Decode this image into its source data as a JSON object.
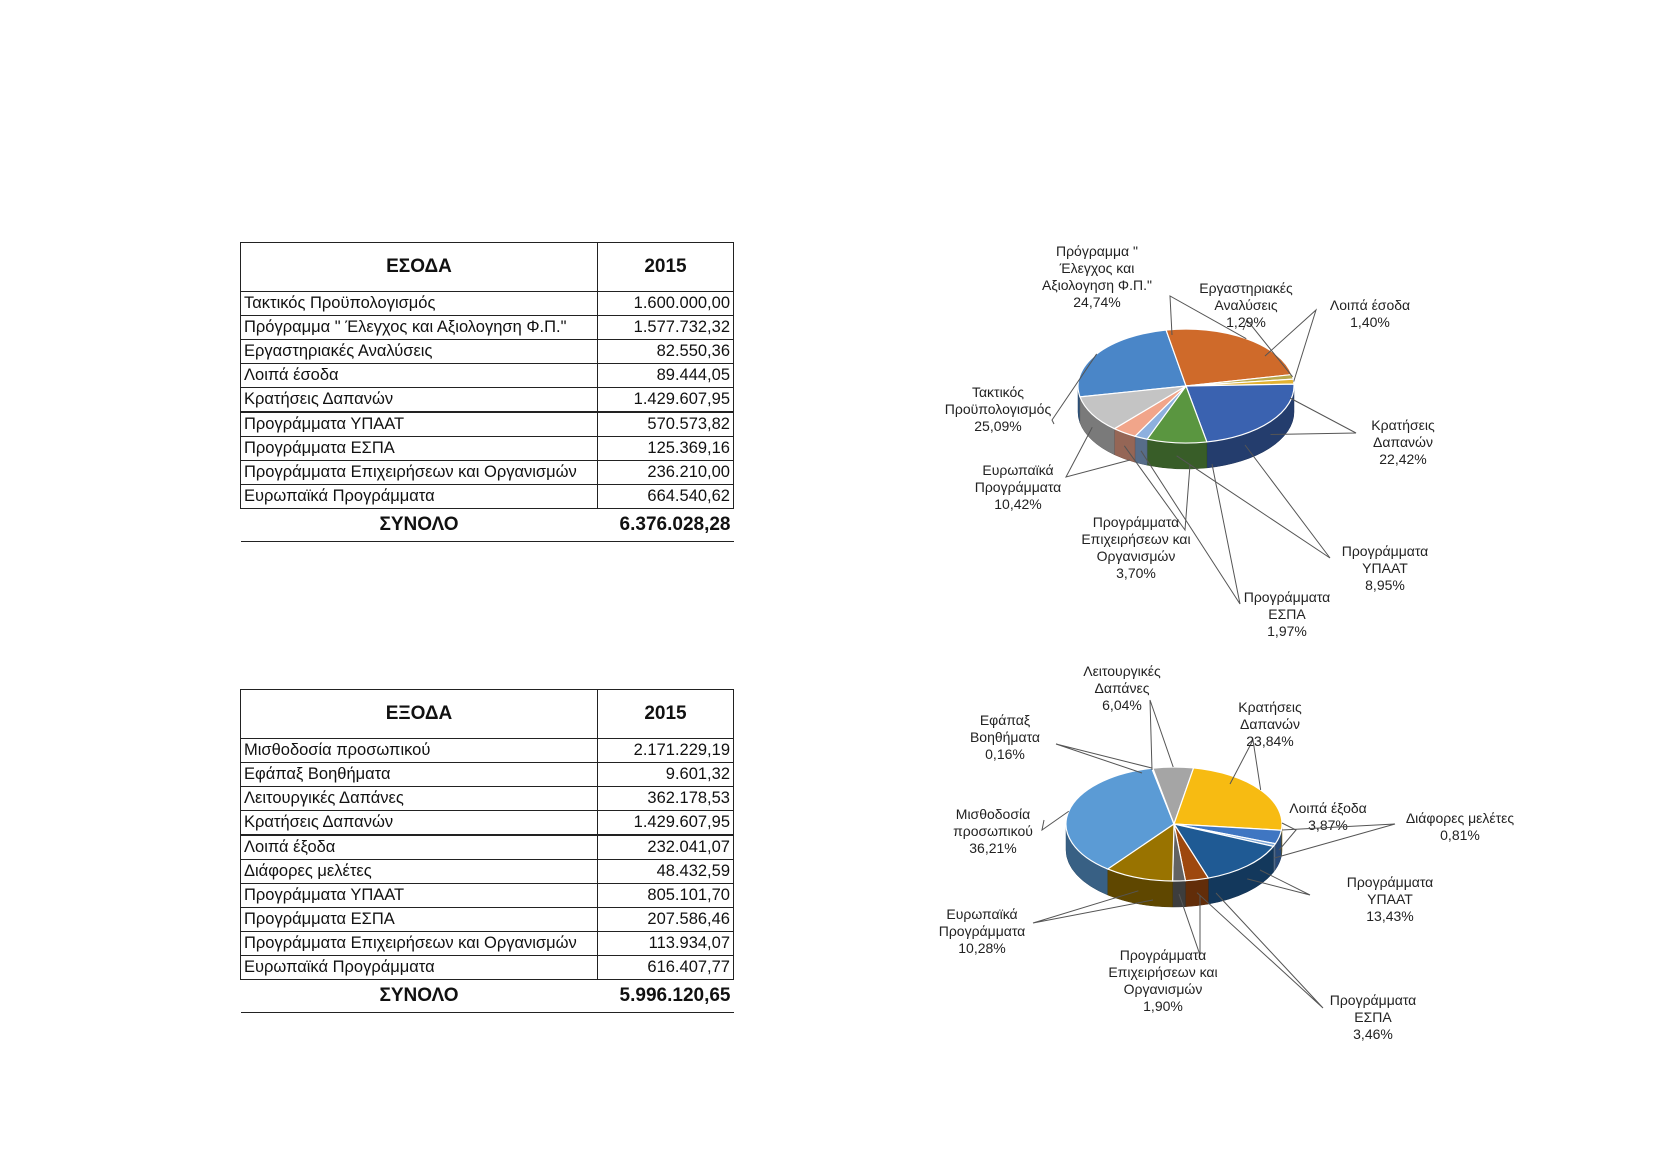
{
  "income_table": {
    "header": {
      "label": "ΕΣΟΔΑ",
      "year": "2015"
    },
    "rows": [
      {
        "label": "Τακτικός Προϋπολογισμός",
        "value": "1.600.000,00"
      },
      {
        "label": "Πρόγραμμα \" Έλεγχος και Αξιολογηση Φ.Π.\"",
        "value": "1.577.732,32"
      },
      {
        "label": "Εργαστηριακές Αναλύσεις",
        "value": "82.550,36"
      },
      {
        "label": "Λοιπά έσοδα",
        "value": "89.444,05"
      },
      {
        "label": "Κρατήσεις Δαπανών",
        "value": "1.429.607,95"
      },
      {
        "label": "Προγράμματα ΥΠΑΑΤ",
        "value": "570.573,82"
      },
      {
        "label": "Προγράμματα ΕΣΠΑ",
        "value": "125.369,16"
      },
      {
        "label": "Προγράμματα Επιχειρήσεων και Οργανισμών",
        "value": "236.210,00"
      },
      {
        "label": "Ευρωπαϊκά Προγράμματα",
        "value": "664.540,62"
      }
    ],
    "total": {
      "label": "ΣΥΝΟΛΟ",
      "value": "6.376.028,28"
    }
  },
  "expense_table": {
    "header": {
      "label": "ΕΞΟΔΑ",
      "year": "2015"
    },
    "rows": [
      {
        "label": "Μισθοδοσία προσωπικού",
        "value": "2.171.229,19"
      },
      {
        "label": "Εφάπαξ Βοηθήματα",
        "value": "9.601,32"
      },
      {
        "label": "Λειτουργικές Δαπάνες",
        "value": "362.178,53"
      },
      {
        "label": "Κρατήσεις Δαπανών",
        "value": "1.429.607,95"
      },
      {
        "label": "Λοιπά έξοδα",
        "value": "232.041,07"
      },
      {
        "label": "Διάφορες μελέτες",
        "value": "48.432,59"
      },
      {
        "label": "Προγράμματα ΥΠΑΑΤ",
        "value": "805.101,70"
      },
      {
        "label": "Προγράμματα ΕΣΠΑ",
        "value": "207.586,46"
      },
      {
        "label": "Προγράμματα Επιχειρήσεων και Οργανισμών",
        "value": "113.934,07"
      },
      {
        "label": "Ευρωπαϊκά Προγράμματα",
        "value": "616.407,77"
      }
    ],
    "total": {
      "label": "ΣΥΝΟΛΟ",
      "value": "5.996.120,65"
    }
  },
  "chart_data": [
    {
      "type": "pie",
      "title": "",
      "slices": [
        {
          "label": [
            "Τακτικός",
            "Προϋπολογισμός",
            "25,09%"
          ],
          "value": 25.09,
          "color": "#4a86c8"
        },
        {
          "label": [
            "Πρόγραμμα \"",
            "Έλεγχος και",
            "Αξιολογηση Φ.Π.\"",
            "24,74%"
          ],
          "value": 24.74,
          "color": "#cf6a2a"
        },
        {
          "label": [
            "Εργαστηριακές",
            "Αναλύσεις",
            "1,29%"
          ],
          "value": 1.29,
          "color": "#b9a84a"
        },
        {
          "label": [
            "Λοιπά έσοδα",
            "1,40%"
          ],
          "value": 1.4,
          "color": "#e2b232"
        },
        {
          "label": [
            "Κρατήσεις",
            "Δαπανών",
            "22,42%"
          ],
          "value": 22.42,
          "color": "#3a62b0"
        },
        {
          "label": [
            "Προγράμματα",
            "ΥΠΑΑΤ",
            "8,95%"
          ],
          "value": 8.95,
          "color": "#5a9640"
        },
        {
          "label": [
            "Προγράμματα",
            "ΕΣΠΑ",
            "1,97%"
          ],
          "value": 1.97,
          "color": "#8db0de"
        },
        {
          "label": [
            "Προγράμματα",
            "Επιχειρήσεων και",
            "Οργανισμών",
            "3,70%"
          ],
          "value": 3.7,
          "color": "#f1a58a"
        },
        {
          "label": [
            "Ευρωπαϊκά",
            "Προγράμματα",
            "10,42%"
          ],
          "value": 10.42,
          "color": "#c4c4c4"
        }
      ]
    },
    {
      "type": "pie",
      "title": "",
      "slices": [
        {
          "label": [
            "Μισθοδοσία",
            "προσωπικού",
            "36,21%"
          ],
          "value": 36.21,
          "color": "#5b9bd5"
        },
        {
          "label": [
            "Εφάπαξ",
            "Βοηθήματα",
            "0,16%"
          ],
          "value": 0.16,
          "color": "#d8d8d8"
        },
        {
          "label": [
            "Λειτουργικές",
            "Δαπάνες",
            "6,04%"
          ],
          "value": 6.04,
          "color": "#a5a5a5"
        },
        {
          "label": [
            "Κρατήσεις",
            "Δαπανών",
            "23,84%"
          ],
          "value": 23.84,
          "color": "#f7bb12"
        },
        {
          "label": [
            "Λοιπά έξοδα",
            "3,87%"
          ],
          "value": 3.87,
          "color": "#3f76c2"
        },
        {
          "label": [
            "Διάφορες μελέτες",
            "0,81%"
          ],
          "value": 0.81,
          "color": "#7fa8d8"
        },
        {
          "label": [
            "Προγράμματα",
            "ΥΠΑΑΤ",
            "13,43%"
          ],
          "value": 13.43,
          "color": "#1f5a94"
        },
        {
          "label": [
            "Προγράμματα",
            "ΕΣΠΑ",
            "3,46%"
          ],
          "value": 3.46,
          "color": "#9e480e"
        },
        {
          "label": [
            "Προγράμματα",
            "Επιχειρήσεων και",
            "Οργανισμών",
            "1,90%"
          ],
          "value": 1.9,
          "color": "#636363"
        },
        {
          "label": [
            "Ευρωπαϊκά",
            "Προγράμματα",
            "10,28%"
          ],
          "value": 10.28,
          "color": "#997300"
        }
      ]
    }
  ]
}
